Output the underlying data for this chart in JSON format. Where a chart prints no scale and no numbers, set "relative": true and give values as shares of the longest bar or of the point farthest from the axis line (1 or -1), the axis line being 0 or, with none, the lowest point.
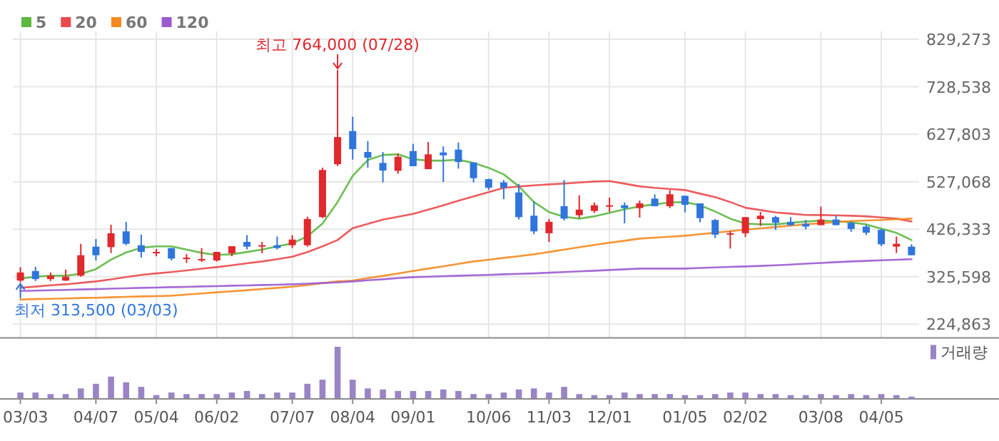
{
  "chart_data": [
    {
      "type": "candlestick",
      "categories": [
        null,
        null,
        null,
        null,
        null,
        null,
        null,
        null,
        null,
        null,
        null,
        null,
        null,
        null,
        null,
        null,
        null,
        null,
        null,
        null,
        null,
        null,
        null,
        null,
        null,
        null,
        null,
        null,
        null,
        null,
        null,
        null,
        null,
        null,
        null,
        null,
        null,
        null,
        null,
        null,
        null,
        null,
        null,
        null,
        null,
        null,
        null,
        null,
        null,
        null,
        null,
        null,
        null,
        null,
        null,
        null,
        null,
        null,
        null,
        null
      ],
      "ohlc": [
        [
          317400,
          345900,
          313500,
          334700
        ],
        [
          337700,
          346800,
          316500,
          320500
        ],
        [
          320500,
          334700,
          316500,
          327800
        ],
        [
          317400,
          340700,
          316500,
          325600
        ],
        [
          327800,
          395400,
          325600,
          371200
        ],
        [
          389400,
          405400,
          360000,
          371200
        ],
        [
          388400,
          435900,
          375800,
          417800
        ],
        [
          421800,
          441900,
          392400,
          395400
        ],
        [
          392400,
          414800,
          366100,
          378300
        ],
        [
          375300,
          384400,
          369100,
          378300
        ],
        [
          386400,
          386400,
          360000,
          364100
        ],
        [
          363100,
          373300,
          355000,
          366100
        ],
        [
          360000,
          386400,
          357000,
          363100
        ],
        [
          360000,
          378300,
          357900,
          378300
        ],
        [
          375300,
          390400,
          369100,
          390400
        ],
        [
          399400,
          413800,
          383400,
          389400
        ],
        [
          389400,
          399400,
          375300,
          392400
        ],
        [
          392400,
          410800,
          383400,
          386400
        ],
        [
          392400,
          413800,
          386400,
          404400
        ],
        [
          392400,
          453000,
          389400,
          448000
        ],
        [
          452000,
          557000,
          450000,
          552000
        ],
        [
          564300,
          764000,
          560300,
          621800
        ],
        [
          634600,
          664900,
          573900,
          596200
        ],
        [
          590200,
          613400,
          556800,
          578100
        ],
        [
          567000,
          590200,
          525600,
          550800
        ],
        [
          550300,
          587200,
          543900,
          580100
        ],
        [
          592200,
          607400,
          560000,
          560000
        ],
        [
          553800,
          611400,
          553800,
          585200
        ],
        [
          589200,
          602100,
          526400,
          583100
        ],
        [
          595200,
          610400,
          555000,
          569000
        ],
        [
          568000,
          568000,
          525600,
          534700
        ],
        [
          532600,
          533700,
          509400,
          514400
        ],
        [
          525600,
          530700,
          490300,
          514400
        ],
        [
          504400,
          522600,
          447000,
          452000
        ],
        [
          455000,
          485200,
          415800,
          421800
        ],
        [
          417800,
          448000,
          399400,
          442000
        ],
        [
          475200,
          530700,
          444900,
          448900
        ],
        [
          456000,
          498300,
          450000,
          468000
        ],
        [
          465000,
          483200,
          461000,
          477200
        ],
        [
          474200,
          493300,
          463000,
          477200
        ],
        [
          477200,
          483200,
          438900,
          471100
        ],
        [
          471200,
          487200,
          450900,
          481200
        ],
        [
          491300,
          500400,
          475200,
          475200
        ],
        [
          475200,
          509400,
          471100,
          500400
        ],
        [
          497300,
          497300,
          462000,
          478200
        ],
        [
          481200,
          481200,
          440900,
          449900
        ],
        [
          445900,
          448000,
          407700,
          414800
        ],
        [
          414800,
          422800,
          385400,
          417800
        ],
        [
          417800,
          452000,
          409800,
          452000
        ],
        [
          447900,
          463000,
          433000,
          455000
        ],
        [
          452000,
          455000,
          424900,
          440000
        ],
        [
          442000,
          452000,
          433000,
          435000
        ],
        [
          438000,
          446000,
          426000,
          432000
        ],
        [
          435000,
          474200,
          435000,
          446900
        ],
        [
          446900,
          455000,
          435000,
          435000
        ],
        [
          440000,
          443000,
          421000,
          427000
        ],
        [
          432000,
          436000,
          414000,
          419000
        ],
        [
          424900,
          427000,
          390400,
          394400
        ],
        [
          389400,
          410800,
          376000,
          395400
        ],
        [
          389400,
          394400,
          371200,
          371200
        ]
      ],
      "colors": [
        "#e0282d",
        "#2f75dd",
        "#e0282d",
        "#e0282d",
        "#e0282d",
        "#2f75dd",
        "#e0282d",
        "#2f75dd",
        "#2f75dd",
        "#e0282d",
        "#2f75dd",
        "#e0282d",
        "#e0282d",
        "#e0282d",
        "#e0282d",
        "#2f75dd",
        "#e0282d",
        "#2f75dd",
        "#e0282d",
        "#e0282d",
        "#e0282d",
        "#e0282d",
        "#2f75dd",
        "#2f75dd",
        "#2f75dd",
        "#e0282d",
        "#2f75dd",
        "#e0282d",
        "#2f75dd",
        "#2f75dd",
        "#2f75dd",
        "#2f75dd",
        "#2f75dd",
        "#2f75dd",
        "#2f75dd",
        "#e0282d",
        "#2f75dd",
        "#e0282d",
        "#e0282d",
        "#e0282d",
        "#2f75dd",
        "#e0282d",
        "#2f75dd",
        "#e0282d",
        "#2f75dd",
        "#2f75dd",
        "#2f75dd",
        "#e0282d",
        "#e0282d",
        "#e0282d",
        "#2f75dd",
        "#2f75dd",
        "#2f75dd",
        "#e0282d",
        "#2f75dd",
        "#2f75dd",
        "#2f75dd",
        "#2f75dd",
        "#e0282d",
        "#2f75dd"
      ],
      "series": [
        {
          "type": "line",
          "name": "5",
          "color": "#5cb83f",
          "values": [
            321700,
            325600,
            327700,
            327700,
            331700,
            341600,
            361900,
            377100,
            387100,
            390100,
            390100,
            383100,
            376200,
            371900,
            373100,
            378000,
            383100,
            390100,
            396200,
            411300,
            438500,
            484000,
            539700,
            573000,
            583900,
            585100,
            574800,
            571800,
            571800,
            573900,
            566900,
            556600,
            542700,
            517300,
            484000,
            462800,
            452800,
            448800,
            453700,
            461000,
            468800,
            474900,
            479100,
            483100,
            484000,
            477000,
            464000,
            448800,
            438500,
            436700,
            436700,
            439800,
            442800,
            444600,
            443700,
            440700,
            436700,
            427600,
            418600,
            403400
          ]
        },
        {
          "type": "line",
          "name": "20",
          "color": "#ea4a4e",
          "values": [
            302300,
            304700,
            307400,
            309500,
            312600,
            315600,
            320100,
            325000,
            329500,
            332600,
            335600,
            338900,
            342600,
            345900,
            349800,
            354100,
            358000,
            362800,
            368000,
            378000,
            390100,
            403400,
            428600,
            437600,
            446700,
            452800,
            458800,
            467900,
            477000,
            486700,
            496100,
            505200,
            514200,
            517000,
            519400,
            521500,
            523300,
            525400,
            527600,
            528500,
            523000,
            517300,
            514200,
            511800,
            509400,
            501800,
            494300,
            484000,
            471900,
            467000,
            461900,
            459400,
            456700,
            456400,
            455800,
            454900,
            453700,
            451300,
            448800,
            442800
          ]
        },
        {
          "type": "line",
          "name": "60",
          "color": "#f5891f",
          "values": [
            277200,
            278100,
            278700,
            279600,
            280500,
            281100,
            282000,
            282900,
            283800,
            284400,
            285300,
            287700,
            290200,
            292600,
            294700,
            297100,
            299600,
            302000,
            304400,
            308000,
            312000,
            315600,
            317400,
            322600,
            327400,
            332600,
            337700,
            342900,
            347700,
            352900,
            358000,
            361600,
            365600,
            369200,
            373100,
            378000,
            383100,
            388000,
            393100,
            397700,
            401900,
            406400,
            408600,
            410400,
            412500,
            415800,
            418900,
            422200,
            425500,
            428200,
            431000,
            434000,
            436700,
            439100,
            441300,
            443700,
            444900,
            446100,
            447600,
            448800
          ]
        },
        {
          "type": "line",
          "name": "120",
          "color": "#9b5bd0",
          "values": [
            295300,
            296200,
            296800,
            297700,
            298600,
            299300,
            300200,
            301100,
            302000,
            302600,
            303500,
            304100,
            305000,
            305600,
            306500,
            307100,
            308000,
            308600,
            309600,
            310800,
            312300,
            313500,
            315600,
            318000,
            320100,
            322600,
            324700,
            325600,
            326800,
            327700,
            328600,
            329500,
            330700,
            331700,
            332600,
            334100,
            335600,
            337100,
            338300,
            339800,
            341300,
            342900,
            342900,
            342900,
            342900,
            344100,
            345300,
            346500,
            347400,
            348600,
            349800,
            351300,
            353200,
            354700,
            356500,
            358000,
            359200,
            360400,
            361600,
            362800
          ]
        }
      ],
      "ylim": [
        196000,
        846000
      ],
      "yticks": [
        {
          "value": 224863,
          "label": "224,863"
        },
        {
          "value": 325598,
          "label": "325,598"
        },
        {
          "value": 426333,
          "label": "426,333"
        },
        {
          "value": 527068,
          "label": "527,068"
        },
        {
          "value": 627803,
          "label": "627,803"
        },
        {
          "value": 728538,
          "label": "728,538"
        },
        {
          "value": 829273,
          "label": "829,273"
        }
      ],
      "grid": true,
      "legend": "top left",
      "tick_labels": "y",
      "annotations": [
        {
          "text": "최고 764,000 (07/28)",
          "y": 764000
        },
        {
          "text": "최저 313,500 (03/03)",
          "y": 313500
        }
      ]
    },
    {
      "type": "bar",
      "relative": true,
      "categories": [
        "03/03",
        null,
        null,
        null,
        null,
        "04/07",
        null,
        null,
        null,
        "05/04",
        null,
        null,
        null,
        "06/02",
        null,
        null,
        null,
        null,
        "07/07",
        null,
        null,
        null,
        "08/04",
        null,
        null,
        null,
        "09/01",
        null,
        null,
        null,
        null,
        "10/06",
        null,
        null,
        null,
        "11/03",
        null,
        null,
        null,
        "12/01",
        null,
        null,
        null,
        null,
        "01/05",
        null,
        null,
        null,
        "02/02",
        null,
        null,
        null,
        null,
        "03/08",
        null,
        null,
        null,
        "04/05",
        null,
        null
      ],
      "series": [
        {
          "name": "거래량",
          "color": "#9a84c6",
          "values": [
            0.11,
            0.11,
            0.08,
            0.08,
            0.19,
            0.28,
            0.42,
            0.31,
            0.22,
            0.06,
            0.11,
            0.08,
            0.08,
            0.08,
            0.11,
            0.14,
            0.08,
            0.11,
            0.11,
            0.28,
            0.36,
            1,
            0.36,
            0.19,
            0.17,
            0.14,
            0.14,
            0.14,
            0.17,
            0.14,
            0.08,
            0.08,
            0.11,
            0.17,
            0.19,
            0.11,
            0.22,
            0.08,
            0.06,
            0.06,
            0.11,
            0.08,
            0.08,
            0.08,
            0.06,
            0.06,
            0.08,
            0.11,
            0.11,
            0.08,
            0.08,
            0.06,
            0.06,
            0.08,
            0.06,
            0.08,
            0.06,
            0.08,
            0.06,
            0.03
          ]
        }
      ],
      "legend": "top right",
      "tick_labels": "x"
    }
  ]
}
